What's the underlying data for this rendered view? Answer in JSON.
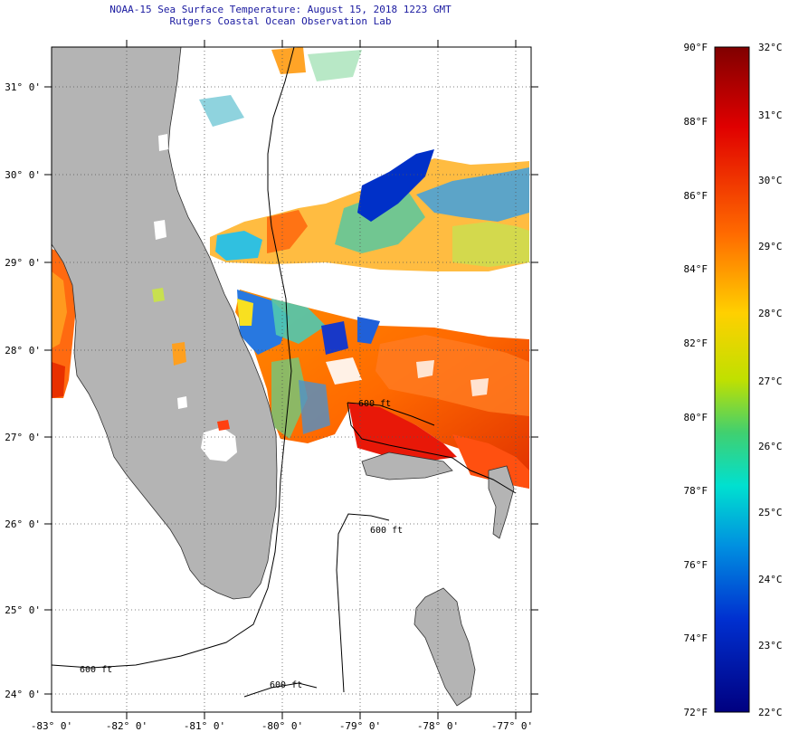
{
  "header": {
    "title": "NOAA-15 Sea Surface Temperature:  August 15, 2018 1223 GMT",
    "subtitle": "Rutgers Coastal Ocean Observation Lab"
  },
  "map": {
    "lat_labels": [
      "31° 0'",
      "30° 0'",
      "29° 0'",
      "28° 0'",
      "27° 0'",
      "26° 0'",
      "25° 0'",
      "24° 0'"
    ],
    "lon_labels": [
      "-83° 0'",
      "-82° 0'",
      "-81° 0'",
      "-80° 0'",
      "-79° 0'",
      "-78° 0'",
      "-77° 0'"
    ],
    "contour_labels": [
      "600 ft",
      "600 ft",
      "600 ft",
      "600 ft"
    ],
    "colors": {
      "land": "#b4b4b4",
      "no_data": "#ffffff"
    }
  },
  "colorbar": {
    "f_labels": [
      "90°F",
      "88°F",
      "86°F",
      "84°F",
      "82°F",
      "80°F",
      "78°F",
      "76°F",
      "74°F",
      "72°F"
    ],
    "c_labels": [
      "32°C",
      "31°C",
      "30°C",
      "29°C",
      "28°C",
      "27°C",
      "26°C",
      "25°C",
      "24°C",
      "23°C",
      "22°C"
    ]
  }
}
